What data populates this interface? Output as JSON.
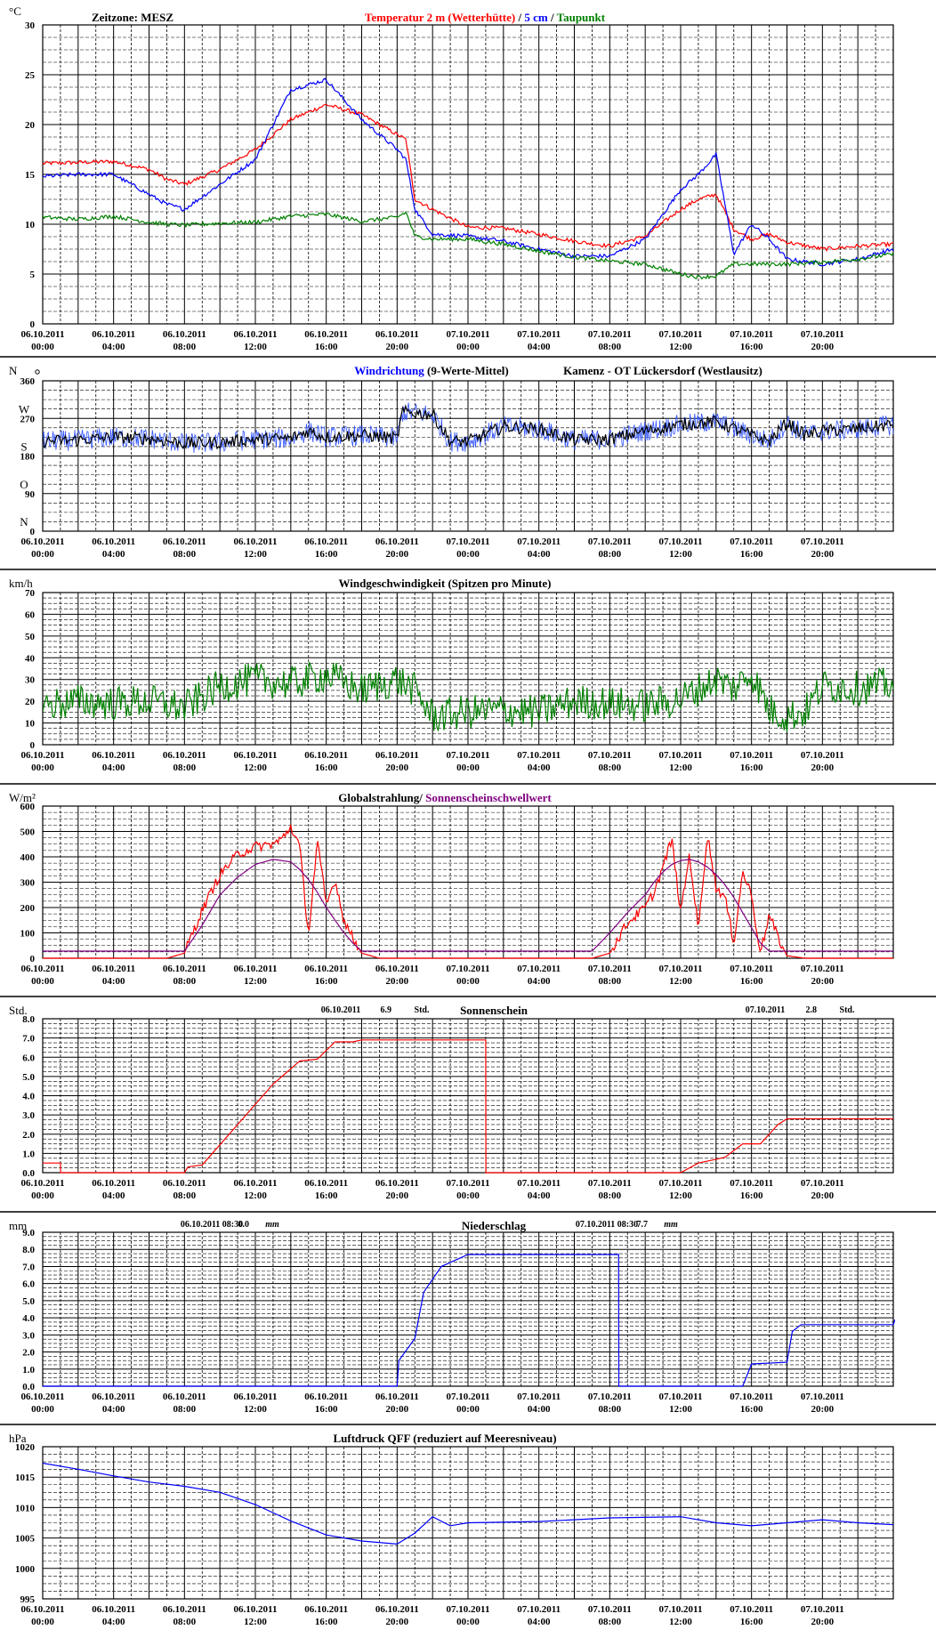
{
  "x_tick_labels": [
    {
      "date": "06.10.2011",
      "time": "00:00"
    },
    {
      "date": "06.10.2011",
      "time": "04:00"
    },
    {
      "date": "06.10.2011",
      "time": "08:00"
    },
    {
      "date": "06.10.2011",
      "time": "12:00"
    },
    {
      "date": "06.10.2011",
      "time": "16:00"
    },
    {
      "date": "06.10.2011",
      "time": "20:00"
    },
    {
      "date": "07.10.2011",
      "time": "00:00"
    },
    {
      "date": "07.10.2011",
      "time": "04:00"
    },
    {
      "date": "07.10.2011",
      "time": "08:00"
    },
    {
      "date": "07.10.2011",
      "time": "12:00"
    },
    {
      "date": "07.10.2011",
      "time": "16:00"
    },
    {
      "date": "07.10.2011",
      "time": "20:00"
    }
  ],
  "chart_data": [
    {
      "id": "temperature",
      "type": "line",
      "unit": "°C",
      "timezone_label": "Zeitzone: MESZ",
      "title_parts": [
        {
          "text": "Temperatur 2 m (Wetterhütte)",
          "color": "#ff0000"
        },
        {
          "text": "  /  ",
          "color": "#000000"
        },
        {
          "text": "5 cm",
          "color": "#0000ff"
        },
        {
          "text": " / ",
          "color": "#000000"
        },
        {
          "text": "Taupunkt",
          "color": "#008000"
        }
      ],
      "ylim": [
        0,
        30
      ],
      "y_ticks": [
        0,
        5,
        10,
        15,
        20,
        25,
        30
      ],
      "x_hours": [
        0,
        2,
        4,
        6,
        7,
        8,
        10,
        12,
        14,
        16,
        18,
        20,
        20.5,
        21,
        22,
        24,
        26,
        28,
        30,
        32,
        34,
        36,
        37,
        38,
        39,
        40,
        41,
        42,
        44,
        46,
        48
      ],
      "series": [
        {
          "name": "Temperatur 2 m (Wetterhütte)",
          "color": "#ff0000",
          "values": [
            16.1,
            16.2,
            16.3,
            15.5,
            14.5,
            14.0,
            15.5,
            17.5,
            20.5,
            22.0,
            21.0,
            19.0,
            18.5,
            12.5,
            11.5,
            9.7,
            9.6,
            9.0,
            8.3,
            7.8,
            8.8,
            11.5,
            12.5,
            13.0,
            9.5,
            8.5,
            9.0,
            8.2,
            7.5,
            7.8,
            8.0
          ]
        },
        {
          "name": "5 cm",
          "color": "#0000ff",
          "values": [
            14.8,
            15.0,
            15.0,
            13.0,
            12.0,
            11.5,
            14.0,
            16.5,
            23.5,
            24.5,
            20.5,
            17.5,
            16.5,
            11.5,
            9.0,
            8.8,
            8.3,
            7.5,
            6.8,
            6.8,
            8.5,
            13.5,
            15.0,
            17.0,
            7.0,
            10.0,
            8.5,
            6.5,
            6.0,
            6.5,
            7.5
          ]
        },
        {
          "name": "Taupunkt",
          "color": "#008000",
          "values": [
            10.7,
            10.5,
            10.8,
            10.2,
            10.0,
            9.9,
            10.1,
            10.2,
            10.8,
            11.0,
            10.3,
            10.7,
            11.2,
            8.8,
            8.5,
            8.5,
            8.0,
            7.3,
            6.7,
            6.3,
            6.0,
            5.0,
            4.7,
            4.8,
            6.0,
            6.0,
            6.0,
            6.0,
            6.2,
            6.5,
            7.0
          ]
        }
      ]
    },
    {
      "id": "wind_direction",
      "type": "line",
      "unit": "N",
      "title_parts": [
        {
          "text": "Windrichtung",
          "color": "#0000ff"
        },
        {
          "text": " (9-Werte-Mittel)",
          "color": "#000000"
        }
      ],
      "station": "Kamenz - OT Lückersdorf (Westlausitz)",
      "ylim": [
        0,
        360
      ],
      "y_ticks": [
        0,
        90,
        180,
        270,
        360
      ],
      "compass_labels": [
        {
          "label": "N",
          "value": 0
        },
        {
          "label": "O",
          "value": 90
        },
        {
          "label": "S",
          "value": 180
        },
        {
          "label": "W",
          "value": 270
        },
        {
          "label": "N",
          "value": 360
        }
      ],
      "x_hours": [
        0,
        2,
        4,
        6,
        8,
        10,
        12,
        14,
        15,
        16,
        18,
        20,
        20.3,
        22,
        23,
        24,
        26,
        28,
        30,
        32,
        34,
        36,
        38,
        40,
        41,
        42,
        43,
        44,
        46,
        48
      ],
      "series": [
        {
          "name": "Windrichtung",
          "color": "#000000",
          "noise": 15,
          "values": [
            215,
            218,
            225,
            222,
            210,
            212,
            220,
            222,
            240,
            225,
            230,
            222,
            285,
            280,
            215,
            215,
            250,
            245,
            218,
            220,
            240,
            255,
            262,
            230,
            215,
            260,
            230,
            240,
            245,
            255
          ]
        }
      ]
    },
    {
      "id": "wind_speed",
      "type": "line",
      "unit": "km/h",
      "title_parts": [
        {
          "text": "Windgeschwindigkeit (Spitzen pro Minute)",
          "color": "#000000"
        }
      ],
      "ylim": [
        0,
        70
      ],
      "y_ticks": [
        0,
        10,
        20,
        30,
        40,
        50,
        60,
        70
      ],
      "x_hours": [
        0,
        2,
        4,
        6,
        8,
        10,
        12,
        14,
        16,
        18,
        20,
        21,
        22,
        24,
        26,
        28,
        30,
        32,
        34,
        36,
        38,
        39,
        40,
        41,
        42,
        43,
        44,
        46,
        48
      ],
      "series": [
        {
          "name": "Windgeschwindigkeit",
          "color": "#008000",
          "noise": 8,
          "values": [
            18,
            20,
            19,
            20,
            17,
            27,
            30,
            28,
            32,
            25,
            30,
            25,
            13,
            15,
            16,
            15,
            20,
            19,
            18,
            21,
            30,
            26,
            33,
            16,
            13,
            15,
            27,
            26,
            28
          ]
        }
      ]
    },
    {
      "id": "radiation",
      "type": "line",
      "unit": "W/m²",
      "title_parts": [
        {
          "text": "Globalstrahlung/",
          "color": "#000000"
        },
        {
          "text": " Sonnenscheinschwellwert",
          "color": "#800080"
        }
      ],
      "ylim": [
        0,
        600
      ],
      "y_ticks": [
        0,
        100,
        200,
        300,
        400,
        500,
        600
      ],
      "x_hours": [
        0,
        7,
        8,
        9,
        10,
        11,
        12,
        13,
        13.5,
        14,
        14.5,
        15,
        15.5,
        16,
        16.5,
        17,
        17.5,
        18,
        19,
        31,
        32,
        33,
        34,
        34.5,
        35,
        35.5,
        36,
        36.5,
        37,
        37.5,
        38,
        38.5,
        39,
        39.5,
        40,
        40.5,
        41,
        41.5,
        42,
        43,
        48
      ],
      "series": [
        {
          "name": "Globalstrahlung",
          "color": "#ff0000",
          "values": [
            0,
            0,
            20,
            190,
            330,
            410,
            440,
            450,
            470,
            520,
            440,
            90,
            460,
            210,
            310,
            150,
            80,
            20,
            0,
            0,
            20,
            140,
            200,
            260,
            360,
            470,
            180,
            410,
            110,
            490,
            280,
            240,
            60,
            340,
            250,
            20,
            170,
            80,
            10,
            0,
            0
          ]
        },
        {
          "name": "Sonnenscheinschwellwert",
          "color": "#800080",
          "values": [
            28,
            28,
            28,
            130,
            250,
            320,
            370,
            390,
            385,
            380,
            350,
            310,
            260,
            200,
            150,
            100,
            60,
            28,
            28,
            28,
            100,
            180,
            250,
            300,
            340,
            370,
            385,
            390,
            380,
            360,
            330,
            290,
            240,
            180,
            120,
            60,
            28,
            28,
            28,
            28,
            28
          ]
        }
      ]
    },
    {
      "id": "sunshine",
      "type": "line",
      "unit": "Std.",
      "title_parts": [
        {
          "text": "Sonnenschein",
          "color": "#000000"
        }
      ],
      "annotations": [
        {
          "date": "06.10.2011",
          "value": "6.9",
          "unit": "Std."
        },
        {
          "date": "07.10.2011",
          "value": "2.8",
          "unit": "Std."
        }
      ],
      "ylim": [
        0,
        8
      ],
      "y_ticks": [
        "0.0",
        "1.0",
        "2.0",
        "3.0",
        "4.0",
        "5.0",
        "6.0",
        "7.0",
        "8.0"
      ],
      "series": [
        {
          "name": "Sonnenschein",
          "color": "#ff0000",
          "points": [
            [
              0,
              0.5
            ],
            [
              1,
              0.5
            ],
            [
              1.01,
              0
            ],
            [
              8,
              0
            ],
            [
              8.2,
              0.3
            ],
            [
              9,
              0.4
            ],
            [
              11,
              2.5
            ],
            [
              13,
              4.6
            ],
            [
              14.5,
              5.8
            ],
            [
              15.5,
              5.9
            ],
            [
              16.5,
              6.8
            ],
            [
              17.5,
              6.8
            ],
            [
              18,
              6.9
            ],
            [
              25,
              6.9
            ],
            [
              25.01,
              0
            ],
            [
              36,
              0
            ],
            [
              37,
              0.5
            ],
            [
              38,
              0.7
            ],
            [
              38.5,
              0.8
            ],
            [
              39.5,
              1.5
            ],
            [
              40.5,
              1.5
            ],
            [
              41.5,
              2.5
            ],
            [
              42,
              2.8
            ],
            [
              48,
              2.8
            ]
          ]
        }
      ]
    },
    {
      "id": "precipitation",
      "type": "line",
      "unit": "mm",
      "title_parts": [
        {
          "text": "Niederschlag",
          "color": "#000000"
        }
      ],
      "annotations": [
        {
          "date": "06.10.2011 08:30",
          "value": "0.0",
          "unit": "mm"
        },
        {
          "date": "07.10.2011 08:30",
          "value": "7.7",
          "unit": "mm"
        }
      ],
      "ylim": [
        0,
        9
      ],
      "y_ticks": [
        "0.0",
        "1.0",
        "2.0",
        "3.0",
        "4.0",
        "5.0",
        "6.0",
        "7.0",
        "8.0",
        "9.0"
      ],
      "series": [
        {
          "name": "Niederschlag",
          "color": "#0000ff",
          "points": [
            [
              0,
              0
            ],
            [
              20,
              0
            ],
            [
              20.1,
              1.5
            ],
            [
              21,
              2.8
            ],
            [
              21.5,
              5.5
            ],
            [
              22.5,
              7.0
            ],
            [
              24,
              7.7
            ],
            [
              32.5,
              7.7
            ],
            [
              32.51,
              0
            ],
            [
              39.5,
              0
            ],
            [
              40,
              1.3
            ],
            [
              42,
              1.4
            ],
            [
              42.3,
              3.2
            ],
            [
              42.8,
              3.6
            ],
            [
              48,
              3.6
            ],
            [
              48.1,
              3.9
            ]
          ]
        }
      ]
    },
    {
      "id": "pressure",
      "type": "line",
      "unit": "hPa",
      "title_parts": [
        {
          "text": "Luftdruck QFF (reduziert auf Meeresniveau)",
          "color": "#000000"
        }
      ],
      "ylim": [
        995,
        1020
      ],
      "y_ticks": [
        995,
        1000,
        1005,
        1010,
        1015,
        1020
      ],
      "series": [
        {
          "name": "Luftdruck QFF",
          "color": "#0000ff",
          "points": [
            [
              0,
              1017.3
            ],
            [
              2,
              1016.3
            ],
            [
              4,
              1015.2
            ],
            [
              6,
              1014.2
            ],
            [
              8,
              1013.5
            ],
            [
              10,
              1012.5
            ],
            [
              12,
              1010.5
            ],
            [
              14,
              1007.8
            ],
            [
              16,
              1005.5
            ],
            [
              18,
              1004.5
            ],
            [
              20,
              1004.0
            ],
            [
              21,
              1005.8
            ],
            [
              22,
              1008.5
            ],
            [
              23,
              1007.0
            ],
            [
              24,
              1007.5
            ],
            [
              28,
              1007.7
            ],
            [
              32,
              1008.3
            ],
            [
              36,
              1008.5
            ],
            [
              38,
              1007.5
            ],
            [
              40,
              1007.0
            ],
            [
              42,
              1007.5
            ],
            [
              44,
              1008.0
            ],
            [
              46,
              1007.5
            ],
            [
              48,
              1007.2
            ]
          ]
        }
      ]
    }
  ]
}
